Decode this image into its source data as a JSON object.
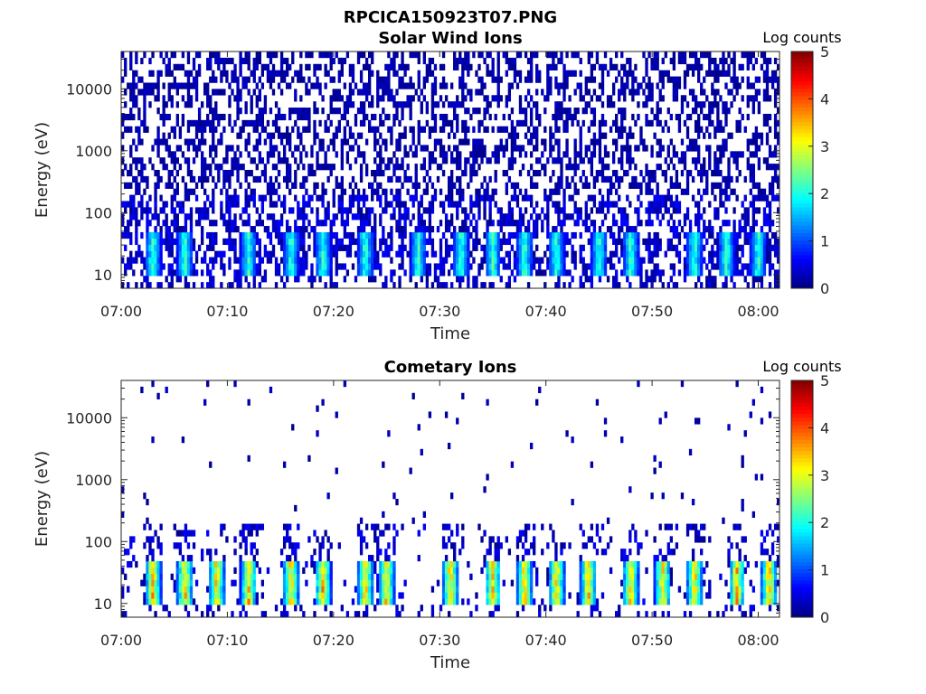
{
  "figure_title": "RPCICA150923T07.PNG",
  "chart_data": [
    {
      "type": "heatmap",
      "title": "Solar Wind Ions",
      "xlabel": "Time",
      "ylabel": "Energy (eV)",
      "x_ticks": [
        "07:00",
        "07:10",
        "07:20",
        "07:30",
        "07:40",
        "07:50",
        "08:00"
      ],
      "x_range": [
        "07:00",
        "08:02"
      ],
      "y_scale": "log",
      "y_ticks": [
        "10",
        "100",
        "1000",
        "10000"
      ],
      "y_range": [
        6,
        40000
      ],
      "colorbar": {
        "label": "Log counts",
        "ticks": [
          "0",
          "1",
          "2",
          "3",
          "4",
          "5"
        ],
        "range": [
          0,
          5
        ],
        "colormap": "jet"
      },
      "features": {
        "low_energy_band_eV": [
          10,
          40
        ],
        "burst_times": [
          "07:03",
          "07:06",
          "07:12",
          "07:16",
          "07:19",
          "07:23",
          "07:28",
          "07:32",
          "07:35",
          "07:38",
          "07:41",
          "07:45",
          "07:48",
          "07:54",
          "07:57",
          "08:00"
        ],
        "peak_log_counts": 2.5,
        "background_log_counts": 0.3
      }
    },
    {
      "type": "heatmap",
      "title": "Cometary Ions",
      "xlabel": "Time",
      "ylabel": "Energy (eV)",
      "x_ticks": [
        "07:00",
        "07:10",
        "07:20",
        "07:30",
        "07:40",
        "07:50",
        "08:00"
      ],
      "x_range": [
        "07:00",
        "08:02"
      ],
      "y_scale": "log",
      "y_ticks": [
        "10",
        "100",
        "1000",
        "10000"
      ],
      "y_range": [
        6,
        40000
      ],
      "colorbar": {
        "label": "Log counts",
        "ticks": [
          "0",
          "1",
          "2",
          "3",
          "4",
          "5"
        ],
        "range": [
          0,
          5
        ],
        "colormap": "jet"
      },
      "features": {
        "low_energy_band_eV": [
          10,
          40
        ],
        "burst_times": [
          "07:03",
          "07:06",
          "07:09",
          "07:12",
          "07:16",
          "07:19",
          "07:23",
          "07:25",
          "07:31",
          "07:35",
          "07:38",
          "07:41",
          "07:44",
          "07:48",
          "07:51",
          "07:54",
          "07:58",
          "08:01"
        ],
        "peak_log_counts": 4.0,
        "background_log_counts": 0.2
      }
    }
  ]
}
